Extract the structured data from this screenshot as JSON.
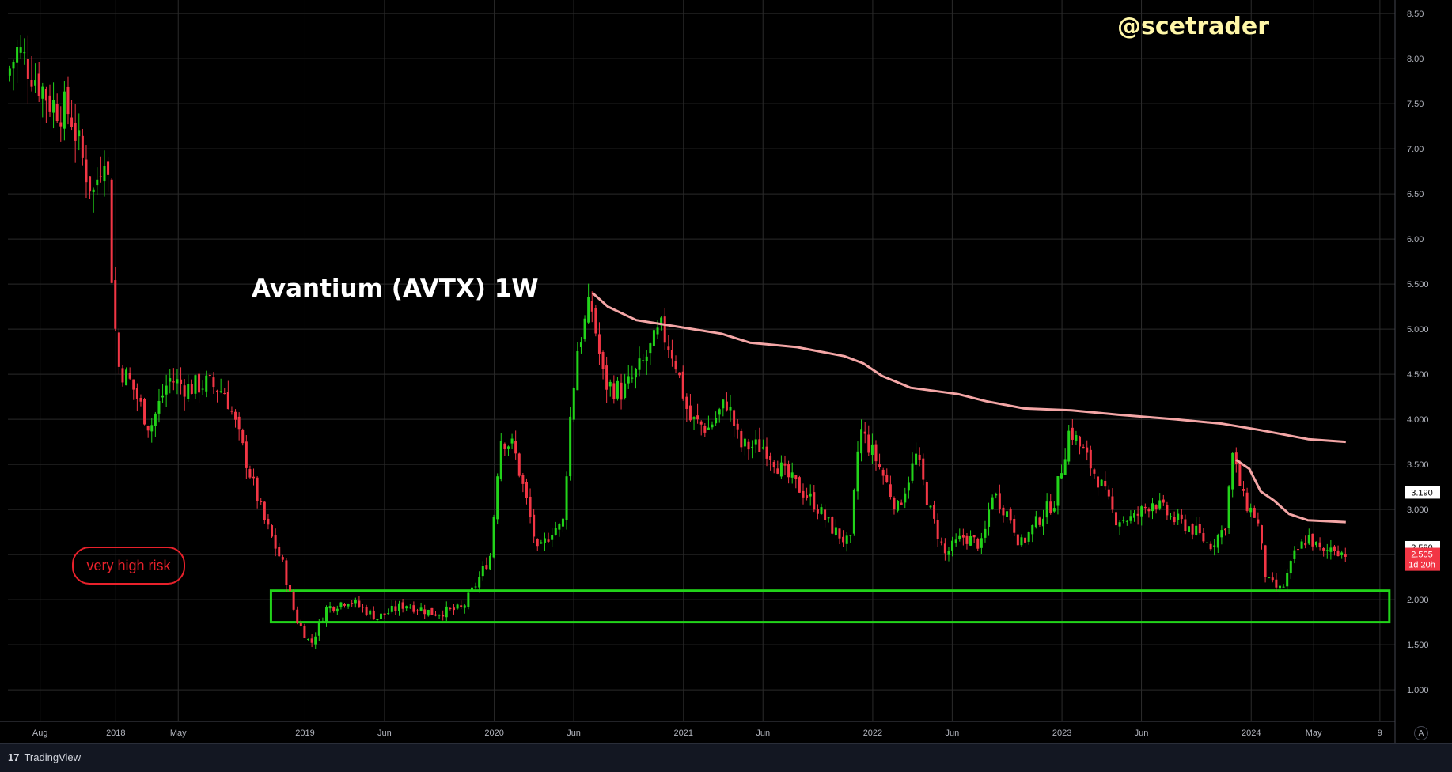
{
  "chart_data": {
    "type": "candlestick",
    "title": "Avantium (AVTX) 1W",
    "watermark": "@scetrader",
    "note": "very high risk",
    "y_ticks": [
      "1.000",
      "1.500",
      "2.000",
      "2.500",
      "3.000",
      "3.500",
      "4.000",
      "4.500",
      "5.000",
      "5.500",
      "6.00",
      "6.50",
      "7.00",
      "7.50",
      "8.00",
      "8.50"
    ],
    "ylim": [
      0.65,
      8.65
    ],
    "x_ticks": [
      {
        "label": "Aug",
        "t": 2017.6
      },
      {
        "label": "2018",
        "t": 2018.0
      },
      {
        "label": "May",
        "t": 2018.33
      },
      {
        "label": "2019",
        "t": 2019.0
      },
      {
        "label": "Jun",
        "t": 2019.42
      },
      {
        "label": "2020",
        "t": 2020.0
      },
      {
        "label": "Jun",
        "t": 2020.42
      },
      {
        "label": "2021",
        "t": 2021.0
      },
      {
        "label": "Jun",
        "t": 2021.42
      },
      {
        "label": "2022",
        "t": 2022.0
      },
      {
        "label": "Jun",
        "t": 2022.42
      },
      {
        "label": "2023",
        "t": 2023.0
      },
      {
        "label": "Jun",
        "t": 2023.42
      },
      {
        "label": "2024",
        "t": 2024.0
      },
      {
        "label": "May",
        "t": 2024.33
      },
      {
        "label": "9",
        "t": 2024.68
      }
    ],
    "xlim": [
      2017.43,
      2024.76
    ],
    "price_path": [
      [
        2017.44,
        7.8
      ],
      [
        2017.5,
        8.1
      ],
      [
        2017.58,
        7.85
      ],
      [
        2017.68,
        7.5
      ],
      [
        2017.78,
        7.4
      ],
      [
        2017.84,
        6.9
      ],
      [
        2017.9,
        6.5
      ],
      [
        2017.97,
        7.1
      ],
      [
        2018.0,
        5.5
      ],
      [
        2018.03,
        4.6
      ],
      [
        2018.1,
        4.4
      ],
      [
        2018.2,
        3.9
      ],
      [
        2018.3,
        4.45
      ],
      [
        2018.4,
        4.35
      ],
      [
        2018.5,
        4.4
      ],
      [
        2018.6,
        4.3
      ],
      [
        2018.7,
        3.6
      ],
      [
        2018.8,
        2.9
      ],
      [
        2018.9,
        2.4
      ],
      [
        2018.97,
        1.8
      ],
      [
        2019.05,
        1.5
      ],
      [
        2019.13,
        1.9
      ],
      [
        2019.25,
        2.0
      ],
      [
        2019.4,
        1.8
      ],
      [
        2019.55,
        1.95
      ],
      [
        2019.7,
        1.85
      ],
      [
        2019.85,
        1.9
      ],
      [
        2019.93,
        2.2
      ],
      [
        2020.0,
        2.5
      ],
      [
        2020.05,
        3.8
      ],
      [
        2020.12,
        3.7
      ],
      [
        2020.2,
        3.0
      ],
      [
        2020.25,
        2.5
      ],
      [
        2020.33,
        2.8
      ],
      [
        2020.38,
        2.8
      ],
      [
        2020.42,
        4.0
      ],
      [
        2020.46,
        4.8
      ],
      [
        2020.53,
        5.3
      ],
      [
        2020.6,
        4.4
      ],
      [
        2020.7,
        4.3
      ],
      [
        2020.8,
        4.6
      ],
      [
        2020.9,
        5.0
      ],
      [
        2020.97,
        4.7
      ],
      [
        2021.05,
        4.0
      ],
      [
        2021.15,
        3.9
      ],
      [
        2021.25,
        4.2
      ],
      [
        2021.32,
        3.7
      ],
      [
        2021.45,
        3.7
      ],
      [
        2021.55,
        3.4
      ],
      [
        2021.7,
        3.1
      ],
      [
        2021.8,
        2.8
      ],
      [
        2021.9,
        2.6
      ],
      [
        2021.95,
        3.9
      ],
      [
        2022.05,
        3.5
      ],
      [
        2022.15,
        3.0
      ],
      [
        2022.25,
        3.6
      ],
      [
        2022.32,
        3.0
      ],
      [
        2022.4,
        2.5
      ],
      [
        2022.5,
        2.7
      ],
      [
        2022.6,
        2.6
      ],
      [
        2022.65,
        3.2
      ],
      [
        2022.75,
        2.9
      ],
      [
        2022.8,
        2.6
      ],
      [
        2022.9,
        2.9
      ],
      [
        2022.98,
        3.1
      ],
      [
        2023.06,
        3.9
      ],
      [
        2023.14,
        3.6
      ],
      [
        2023.22,
        3.3
      ],
      [
        2023.3,
        2.9
      ],
      [
        2023.4,
        2.9
      ],
      [
        2023.5,
        3.1
      ],
      [
        2023.6,
        2.9
      ],
      [
        2023.7,
        2.8
      ],
      [
        2023.8,
        2.6
      ],
      [
        2023.88,
        2.8
      ],
      [
        2023.92,
        3.6
      ],
      [
        2023.98,
        3.1
      ],
      [
        2024.05,
        2.9
      ],
      [
        2024.1,
        2.2
      ],
      [
        2024.18,
        2.1
      ],
      [
        2024.25,
        2.5
      ],
      [
        2024.32,
        2.7
      ],
      [
        2024.4,
        2.5
      ],
      [
        2024.45,
        2.6
      ],
      [
        2024.5,
        2.52
      ]
    ],
    "vwap_lines": [
      {
        "color": "#f4a6a6",
        "points": [
          [
            2020.52,
            5.4
          ],
          [
            2020.6,
            5.25
          ],
          [
            2020.75,
            5.1
          ],
          [
            2020.9,
            5.05
          ],
          [
            2021.05,
            5.0
          ],
          [
            2021.2,
            4.95
          ],
          [
            2021.35,
            4.85
          ],
          [
            2021.6,
            4.8
          ],
          [
            2021.85,
            4.7
          ],
          [
            2021.95,
            4.62
          ],
          [
            2022.05,
            4.48
          ],
          [
            2022.2,
            4.35
          ],
          [
            2022.45,
            4.28
          ],
          [
            2022.6,
            4.2
          ],
          [
            2022.8,
            4.12
          ],
          [
            2023.05,
            4.1
          ],
          [
            2023.3,
            4.05
          ],
          [
            2023.6,
            4.0
          ],
          [
            2023.85,
            3.95
          ],
          [
            2024.05,
            3.88
          ],
          [
            2024.3,
            3.78
          ],
          [
            2024.5,
            3.75
          ]
        ]
      },
      {
        "color": "#f4a6a6",
        "points": [
          [
            2023.92,
            3.55
          ],
          [
            2023.99,
            3.45
          ],
          [
            2024.05,
            3.2
          ],
          [
            2024.12,
            3.1
          ],
          [
            2024.2,
            2.95
          ],
          [
            2024.3,
            2.88
          ],
          [
            2024.5,
            2.86
          ]
        ]
      }
    ],
    "support_zone": {
      "t0": 2018.82,
      "t1": 2024.73,
      "low": 1.75,
      "high": 2.1,
      "color": "#22d31a"
    },
    "price_labels": [
      {
        "text": "3.190",
        "value": 3.19,
        "bg": "#ffffff",
        "fg": "#000000"
      },
      {
        "text": "2.580",
        "value": 2.58,
        "bg": "#ffffff",
        "fg": "#000000"
      },
      {
        "text": "2.505",
        "value": 2.505,
        "bg": "#f23645",
        "fg": "#ffffff"
      },
      {
        "text": "1d 20h",
        "value": 2.39,
        "bg": "#f23645",
        "fg": "#ffffff"
      }
    ],
    "up_color": "#22d31a",
    "down_color": "#f23645"
  },
  "footer": {
    "brand": "TradingView",
    "logo": "17"
  },
  "axis_button": "A"
}
